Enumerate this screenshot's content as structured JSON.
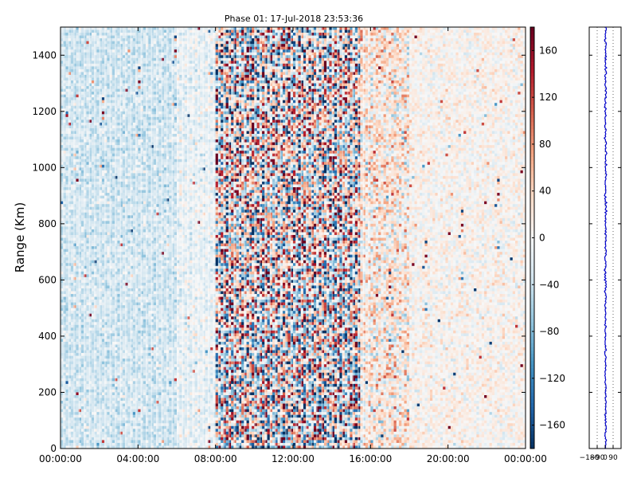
{
  "chart_data": [
    {
      "type": "heatmap",
      "title": "Phase 01: 17-Jul-2018 23:53:36",
      "xlabel": "",
      "ylabel": "Range (Km)",
      "xlim": [
        "00:00:00",
        "24:00:00"
      ],
      "ylim": [
        0,
        1500
      ],
      "x_ticks": [
        "00:00:00",
        "04:00:00",
        "08:00:00",
        "12:00:00",
        "16:00:00",
        "20:00:00",
        "00:00:00"
      ],
      "y_ticks": [
        0,
        200,
        400,
        600,
        800,
        1000,
        1200,
        1400
      ],
      "colorbar": {
        "range": [
          -180,
          180
        ],
        "ticks": [
          -160,
          -120,
          -80,
          -40,
          0,
          40,
          80,
          120,
          160
        ],
        "colors": [
          "#053061",
          "#2166ac",
          "#4393c3",
          "#92c5de",
          "#d1e5f0",
          "#f7f7f7",
          "#fddbc7",
          "#f4a582",
          "#d6604d",
          "#b2182b",
          "#67001f"
        ]
      },
      "regions": [
        {
          "time": [
            "00:00:00",
            "06:00:00"
          ],
          "phase_mean": -35,
          "spread": "low"
        },
        {
          "time": [
            "06:00:00",
            "08:00:00"
          ],
          "phase_mean": -15,
          "spread": "low"
        },
        {
          "time": [
            "08:00:00",
            "15:30:00"
          ],
          "phase_mean": 0,
          "spread": "high"
        },
        {
          "time": [
            "15:30:00",
            "18:00:00"
          ],
          "phase_mean": 15,
          "spread": "medium"
        },
        {
          "time": [
            "18:00:00",
            "24:00:00"
          ],
          "phase_mean": 5,
          "spread": "low"
        }
      ]
    },
    {
      "type": "line",
      "title": "",
      "xlabel": "",
      "ylabel": "",
      "xlim": [
        -180,
        180
      ],
      "ylim": [
        0,
        1500
      ],
      "x_ticks": [
        "−180",
        "−90",
        "0",
        "90"
      ],
      "profile_mean": 5,
      "profile_spread": 12
    }
  ]
}
